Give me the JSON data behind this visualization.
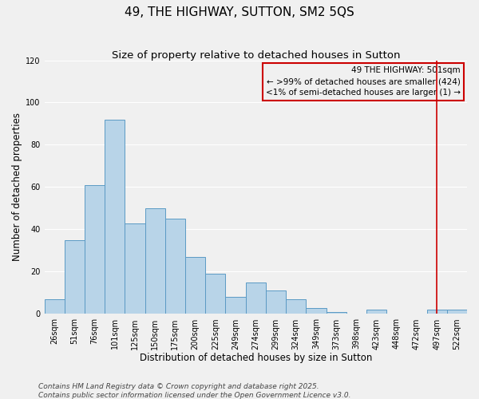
{
  "title": "49, THE HIGHWAY, SUTTON, SM2 5QS",
  "subtitle": "Size of property relative to detached houses in Sutton",
  "xlabel": "Distribution of detached houses by size in Sutton",
  "ylabel": "Number of detached properties",
  "bar_labels": [
    "26sqm",
    "51sqm",
    "76sqm",
    "101sqm",
    "125sqm",
    "150sqm",
    "175sqm",
    "200sqm",
    "225sqm",
    "249sqm",
    "274sqm",
    "299sqm",
    "324sqm",
    "349sqm",
    "373sqm",
    "398sqm",
    "423sqm",
    "448sqm",
    "472sqm",
    "497sqm",
    "522sqm"
  ],
  "bar_values": [
    7,
    35,
    61,
    92,
    43,
    50,
    45,
    27,
    19,
    8,
    15,
    11,
    7,
    3,
    1,
    0,
    2,
    0,
    0,
    2,
    2
  ],
  "bar_color": "#b8d4e8",
  "bar_edge_color": "#5b9ac4",
  "vline_x": 19,
  "vline_color": "#cc0000",
  "legend_title": "49 THE HIGHWAY: 501sqm",
  "legend_line1": "← >99% of detached houses are smaller (424)",
  "legend_line2": "<1% of semi-detached houses are larger (1) →",
  "ylim": [
    0,
    120
  ],
  "yticks": [
    0,
    20,
    40,
    60,
    80,
    100,
    120
  ],
  "footer1": "Contains HM Land Registry data © Crown copyright and database right 2025.",
  "footer2": "Contains public sector information licensed under the Open Government Licence v3.0.",
  "background_color": "#f0f0f0",
  "plot_bg_color": "#f0f0f0",
  "grid_color": "#ffffff",
  "title_fontsize": 11,
  "subtitle_fontsize": 9.5,
  "axis_label_fontsize": 8.5,
  "tick_fontsize": 7,
  "legend_fontsize": 7.5,
  "footer_fontsize": 6.5
}
